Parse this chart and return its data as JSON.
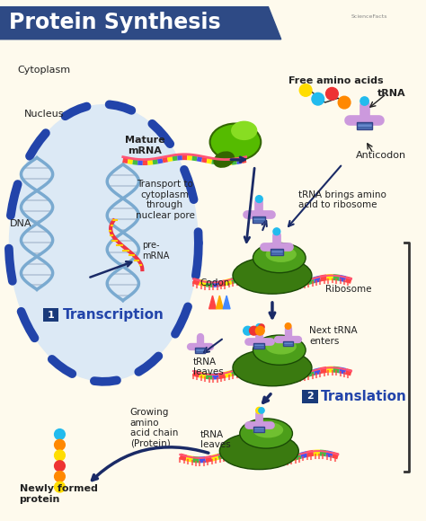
{
  "title": "Protein Synthesis",
  "title_color": "#FFFFFF",
  "title_bg_color": "#2E4A85",
  "bg_color": "#FEFAED",
  "nucleus_fill": "#DCE9F5",
  "nucleus_border": "#2244AA",
  "cytoplasm_label": "Cytoplasm",
  "nucleus_label": "Nucleus",
  "dna_label": "DNA",
  "premrna_label": "pre-\nmRNA",
  "mature_mrna_label": "Mature\nmRNA",
  "transport_label": "Transport to\ncytoplasm\nthrough\nnuclear pore",
  "codon_label": "Codon",
  "ribosome_label": "Ribosome",
  "trna_brings_label": "tRNA brings amino\nacid to ribosome",
  "next_trna_label": "Next tRNA\nenters",
  "trna_leaves1_label": "tRNA\nleaves",
  "growing_label": "Growing\namino\nacid chain\n(Protein)",
  "trna_leaves2_label": "tRNA\nleaves",
  "newly_formed_label": "Newly formed\nprotein",
  "free_amino_label": "Free amino acids",
  "trna_label": "tRNA",
  "anticodon_label": "Anticodon",
  "transcription_label": "Transcription",
  "translation_label": "Translation",
  "step1_bg": "#1A3A7A",
  "step2_bg": "#1A3A7A",
  "green_dark": "#3A7A10",
  "green_mid": "#4C9E1A",
  "green_light": "#70C030",
  "pink_mrna": "#FF5577",
  "blue_dna": "#7AAAD0",
  "red_dna": "#EE3344",
  "purple_trna": "#CC99DD",
  "blue_anticodon": "#6699CC",
  "red_dot": "#EE3333",
  "orange_dot": "#FF8800",
  "yellow_dot": "#FFDD00",
  "cyan_dot": "#22BBEE",
  "stripe_red": "#FF4444",
  "stripe_yellow": "#FFEE00",
  "stripe_green": "#44BB44",
  "stripe_blue": "#4455EE",
  "arrow_color": "#1A2A66",
  "text_color": "#222222",
  "label_fontsize": 7.5,
  "title_fontsize": 17
}
